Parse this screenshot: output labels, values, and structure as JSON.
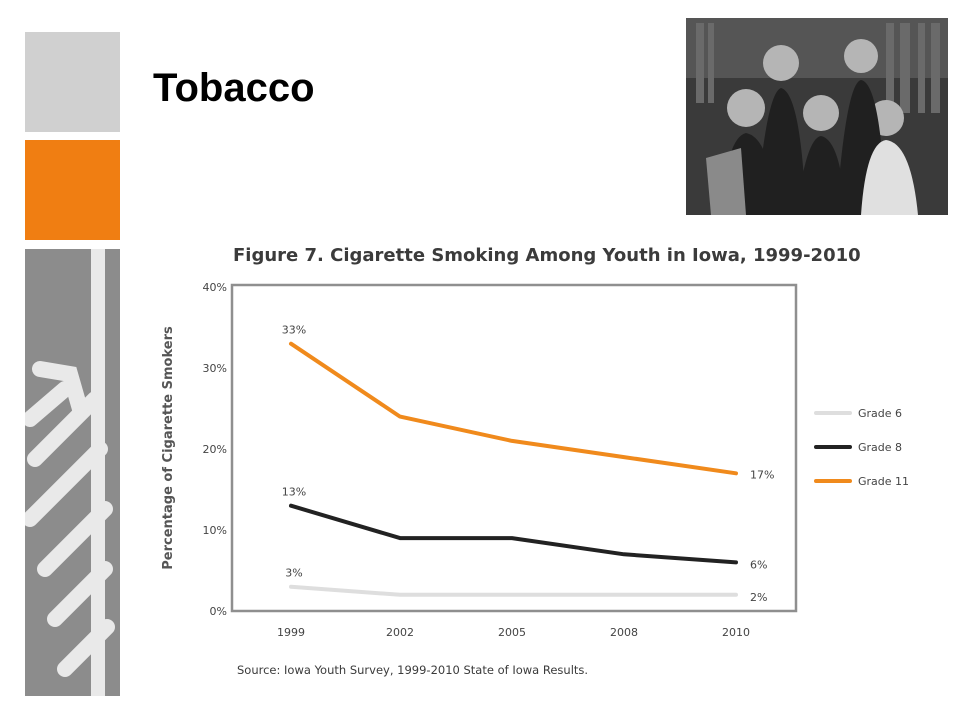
{
  "slide": {
    "title": "Tobacco",
    "photo_icon": "group-of-students-photo"
  },
  "colors": {
    "accent_orange": "#f07e12",
    "gray_light": "#d0d0d0",
    "gray_dark": "#8c8c8c",
    "grade6": "#dedede",
    "grade8": "#222222",
    "grade11": "#f08a1c"
  },
  "chart_data": {
    "type": "line",
    "title": "Figure 7. Cigarette Smoking Among Youth in Iowa, 1999-2010",
    "xlabel": "",
    "ylabel": "Percentage of Cigarette Smokers",
    "x": [
      "1999",
      "2002",
      "2005",
      "2008",
      "2010"
    ],
    "ylim": [
      0,
      40
    ],
    "yticks": [
      "0%",
      "10%",
      "20%",
      "30%",
      "40%"
    ],
    "grid": false,
    "legend_position": "right",
    "series": [
      {
        "name": "Grade 6",
        "values": [
          3,
          2,
          2,
          2,
          2
        ],
        "labels": [
          "3%",
          "",
          "",
          "",
          "2%"
        ]
      },
      {
        "name": "Grade 8",
        "values": [
          13,
          9,
          9,
          7,
          6
        ],
        "labels": [
          "13%",
          "",
          "",
          "",
          "6%"
        ]
      },
      {
        "name": "Grade 11",
        "values": [
          33,
          24,
          21,
          19,
          17
        ],
        "labels": [
          "33%",
          "",
          "",
          "",
          "17%"
        ]
      }
    ],
    "source": "Source: Iowa Youth Survey, 1999-2010 State of Iowa Results."
  }
}
